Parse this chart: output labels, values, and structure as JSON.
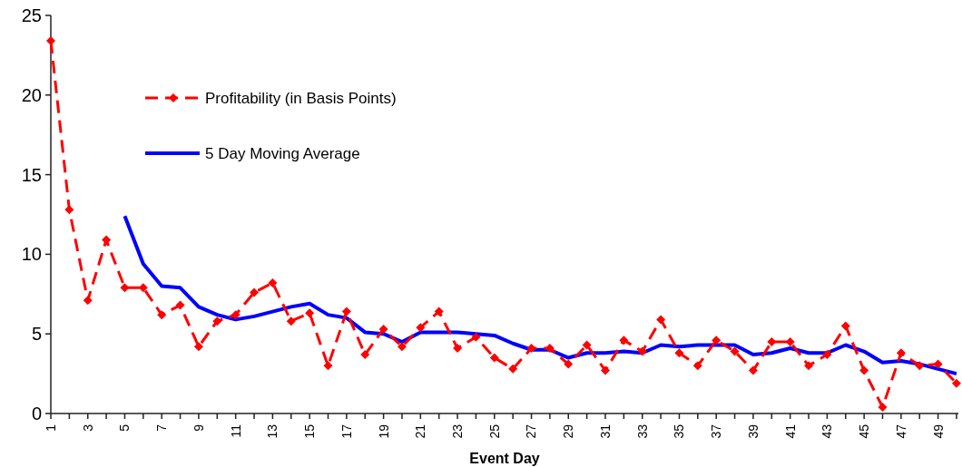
{
  "chart_data": {
    "type": "line",
    "xlabel": "Event Day",
    "categories": [
      "1",
      null,
      "3",
      null,
      "5",
      null,
      "7",
      null,
      "9",
      null,
      "11",
      null,
      "13",
      null,
      "15",
      null,
      "17",
      null,
      "19",
      null,
      "21",
      null,
      "23",
      null,
      "25",
      null,
      "27",
      null,
      "29",
      null,
      "31",
      null,
      "33",
      null,
      "35",
      null,
      "37",
      null,
      "39",
      null,
      "41",
      null,
      "43",
      null,
      "45",
      null,
      "47",
      null,
      "49",
      null
    ],
    "ylim": [
      0,
      25
    ],
    "yticks": [
      0,
      5,
      10,
      15,
      20,
      25
    ],
    "grid": false,
    "legend": "top left",
    "series": [
      {
        "name": "Profitability (in Basis Points)",
        "color": "#ff0000",
        "marker": "diamond",
        "line_style": "dashed",
        "values": [
          23.4,
          12.8,
          7.1,
          10.9,
          7.9,
          7.9,
          6.2,
          6.8,
          4.2,
          5.8,
          6.2,
          7.6,
          8.2,
          5.8,
          6.3,
          3.0,
          6.4,
          3.7,
          5.3,
          4.2,
          5.4,
          6.4,
          4.1,
          4.8,
          3.5,
          2.8,
          4.1,
          4.1,
          3.1,
          4.3,
          2.7,
          4.6,
          3.9,
          5.9,
          3.8,
          3.0,
          4.6,
          3.9,
          2.7,
          4.5,
          4.5,
          3.0,
          3.7,
          5.5,
          2.7,
          0.4,
          3.8,
          3.0,
          3.1,
          1.9
        ]
      },
      {
        "name": "5 Day Moving Average",
        "color": "#0000ff",
        "marker": "none",
        "line_style": "solid",
        "values": [
          null,
          null,
          null,
          null,
          12.4,
          9.4,
          8.0,
          7.9,
          6.7,
          6.2,
          5.9,
          6.1,
          6.4,
          6.7,
          6.9,
          6.2,
          6.0,
          5.1,
          5.0,
          4.5,
          5.1,
          5.1,
          5.1,
          5.0,
          4.9,
          4.4,
          4.0,
          4.0,
          3.5,
          3.8,
          3.8,
          3.9,
          3.8,
          4.3,
          4.2,
          4.3,
          4.3,
          4.3,
          3.7,
          3.8,
          4.1,
          3.8,
          3.8,
          4.3,
          3.9,
          3.2,
          3.3,
          3.1,
          2.8,
          2.5
        ]
      }
    ]
  }
}
